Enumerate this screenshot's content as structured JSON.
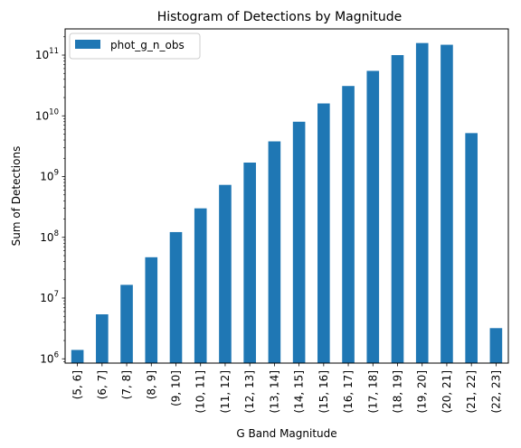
{
  "chart_data": {
    "type": "bar",
    "title": "Histogram of Detections by Magnitude",
    "xlabel": "G Band Magnitude",
    "ylabel": "Sum of Detections",
    "yscale": "log",
    "ylim": [
      850000.0,
      270000000000.0
    ],
    "yticks": [
      {
        "value": 1000000.0,
        "base": "10",
        "exp": "6"
      },
      {
        "value": 10000000.0,
        "base": "10",
        "exp": "7"
      },
      {
        "value": 100000000.0,
        "base": "10",
        "exp": "8"
      },
      {
        "value": 1000000000.0,
        "base": "10",
        "exp": "9"
      },
      {
        "value": 10000000000.0,
        "base": "10",
        "exp": "10"
      },
      {
        "value": 100000000000.0,
        "base": "10",
        "exp": "11"
      }
    ],
    "grid": false,
    "legend_position": "top-left",
    "categories": [
      "(5, 6]",
      "(6, 7]",
      "(7, 8]",
      "(8, 9]",
      "(9, 10]",
      "(10, 11]",
      "(11, 12]",
      "(12, 13]",
      "(13, 14]",
      "(14, 15]",
      "(15, 16]",
      "(16, 17]",
      "(17, 18]",
      "(18, 19]",
      "(19, 20]",
      "(20, 21]",
      "(21, 22]",
      "(22, 23]"
    ],
    "series": [
      {
        "name": "phot_g_n_obs",
        "color": "#1f77b4",
        "values": [
          1400000.0,
          5400000.0,
          16500000.0,
          47000000.0,
          122000000.0,
          300000000.0,
          730000000.0,
          1700000000.0,
          3800000000.0,
          8000000000.0,
          16000000000.0,
          31000000000.0,
          55000000000.0,
          100000000000.0,
          158000000000.0,
          148000000000.0,
          5200000000.0,
          3200000.0
        ]
      }
    ]
  }
}
